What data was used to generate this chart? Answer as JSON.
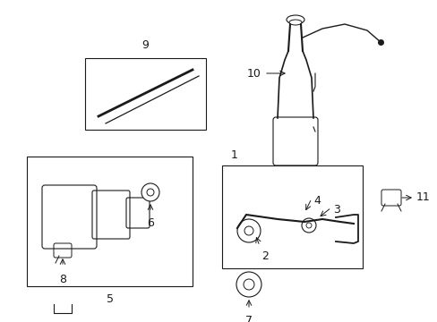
{
  "background_color": "#ffffff",
  "figure_width": 4.89,
  "figure_height": 3.6,
  "dpi": 100,
  "color": "#1a1a1a",
  "lw": 0.8
}
